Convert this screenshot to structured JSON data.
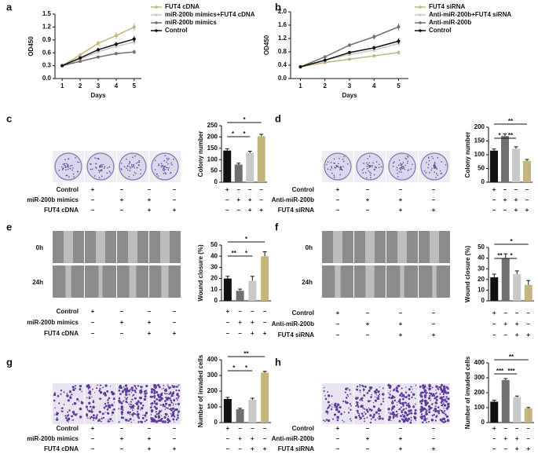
{
  "chart_data": [
    {
      "type": "line",
      "panel": "a",
      "xlabel": "Days",
      "ylabel": "OD450",
      "x": [
        1,
        2,
        3,
        4,
        5
      ],
      "xlim": [
        0.6,
        5.4
      ],
      "xticks": [
        1,
        2,
        3,
        4,
        5
      ],
      "ylim": [
        0,
        1.5
      ],
      "yticks": [
        {
          "value": 0,
          "label": "0.0"
        },
        0.3,
        0.6,
        0.9,
        1.2,
        1.5
      ],
      "series": [
        {
          "name": "FUT4 cDNA",
          "color": "#c2b57d",
          "values": [
            0.3,
            0.55,
            0.82,
            1.0,
            1.2
          ],
          "errors": [
            0.02,
            0.04,
            0.06,
            0.08,
            0.1
          ]
        },
        {
          "name": "miR-200b mimics+FUT4 cDNA",
          "color": "#c9c9c9",
          "values": [
            0.3,
            0.45,
            0.62,
            0.75,
            0.85
          ],
          "errors": [
            0.02,
            0.03,
            0.04,
            0.05,
            0.06
          ]
        },
        {
          "name": "miR-200b mimics",
          "color": "#707070",
          "values": [
            0.3,
            0.4,
            0.5,
            0.58,
            0.62
          ],
          "errors": [
            0.02,
            0.02,
            0.03,
            0.03,
            0.05
          ]
        },
        {
          "name": "Control",
          "color": "#111111",
          "values": [
            0.3,
            0.48,
            0.67,
            0.8,
            0.92
          ],
          "errors": [
            0.02,
            0.03,
            0.04,
            0.05,
            0.07
          ]
        }
      ]
    },
    {
      "type": "line",
      "panel": "b",
      "xlabel": "Days",
      "ylabel": "OD450",
      "x": [
        1,
        2,
        3,
        4,
        5
      ],
      "xlim": [
        0.6,
        5.4
      ],
      "xticks": [
        1,
        2,
        3,
        4,
        5
      ],
      "ylim": [
        0,
        2
      ],
      "yticks": [
        {
          "value": 0,
          "label": "0.0"
        },
        0.4,
        0.8,
        1.2,
        1.6,
        {
          "value": 2,
          "label": "2.0"
        }
      ],
      "series": [
        {
          "name": "FUT4 siRNA",
          "color": "#c2b57d",
          "values": [
            0.35,
            0.48,
            0.58,
            0.68,
            0.78
          ],
          "errors": [
            0.02,
            0.03,
            0.03,
            0.04,
            0.06
          ]
        },
        {
          "name": "Anti-miR-200b+FUT4 siRNA",
          "color": "#c9c9c9",
          "values": [
            0.35,
            0.55,
            0.72,
            0.85,
            1.05
          ],
          "errors": [
            0.02,
            0.04,
            0.05,
            0.06,
            0.08
          ]
        },
        {
          "name": "Anti-miR-200b",
          "color": "#707070",
          "values": [
            0.35,
            0.65,
            1.0,
            1.25,
            1.55
          ],
          "errors": [
            0.02,
            0.05,
            0.06,
            0.08,
            0.1
          ]
        },
        {
          "name": "Control",
          "color": "#111111",
          "values": [
            0.35,
            0.55,
            0.78,
            0.92,
            1.12
          ],
          "errors": [
            0.02,
            0.04,
            0.05,
            0.06,
            0.08
          ]
        }
      ]
    },
    {
      "type": "bar",
      "panel": "c",
      "ylabel": "Colony number",
      "ylim": [
        0,
        250
      ],
      "yticks": [
        0,
        50,
        100,
        150,
        200,
        250
      ],
      "values": [
        140,
        78,
        130,
        203
      ],
      "errors": [
        8,
        6,
        7,
        9
      ],
      "colors": [
        "#111111",
        "#707070",
        "#c9c9c9",
        "#c2b57d"
      ],
      "significance": [
        "*",
        "*",
        "*"
      ]
    },
    {
      "type": "bar",
      "panel": "d",
      "ylabel": "Colony number",
      "ylim": [
        0,
        200
      ],
      "yticks": [
        0,
        50,
        100,
        150,
        200
      ],
      "values": [
        115,
        168,
        122,
        78
      ],
      "errors": [
        6,
        8,
        7,
        5
      ],
      "colors": [
        "#111111",
        "#707070",
        "#c9c9c9",
        "#c2b57d"
      ],
      "significance": [
        "**",
        "*",
        "**"
      ]
    },
    {
      "type": "bar",
      "panel": "e",
      "ylabel": "Wound closure (%)",
      "ylim": [
        0,
        50
      ],
      "yticks": [
        0,
        10,
        20,
        30,
        40,
        50
      ],
      "values": [
        20,
        9,
        18,
        40
      ],
      "errors": [
        2,
        1.5,
        4,
        4
      ],
      "colors": [
        "#111111",
        "#707070",
        "#c9c9c9",
        "#c2b57d"
      ],
      "significance": [
        "*",
        "**",
        "*"
      ]
    },
    {
      "type": "bar",
      "panel": "f",
      "ylabel": "Wound closure (%)",
      "ylim": [
        0,
        50
      ],
      "yticks": [
        0,
        10,
        20,
        30,
        40,
        50
      ],
      "values": [
        22,
        40,
        25,
        15
      ],
      "errors": [
        3,
        4,
        3,
        4
      ],
      "colors": [
        "#111111",
        "#707070",
        "#c9c9c9",
        "#c2b57d"
      ],
      "significance": [
        "*",
        "**",
        "*"
      ]
    },
    {
      "type": "bar",
      "panel": "g",
      "ylabel": "Number of invaded cells",
      "ylim": [
        0,
        400
      ],
      "yticks": [
        0,
        100,
        200,
        300,
        400
      ],
      "values": [
        150,
        85,
        145,
        318
      ],
      "errors": [
        10,
        6,
        10,
        8
      ],
      "colors": [
        "#111111",
        "#707070",
        "#c9c9c9",
        "#c2b57d"
      ],
      "significance": [
        "**",
        "*",
        "*"
      ]
    },
    {
      "type": "bar",
      "panel": "h",
      "ylabel": "Number of invaded cells",
      "ylim": [
        0,
        400
      ],
      "yticks": [
        0,
        100,
        200,
        300,
        400
      ],
      "values": [
        140,
        285,
        170,
        95
      ],
      "errors": [
        10,
        10,
        8,
        6
      ],
      "colors": [
        "#111111",
        "#707070",
        "#c9c9c9",
        "#c2b57d"
      ],
      "significance": [
        "**",
        "***",
        "***"
      ]
    }
  ],
  "conditions": [
    null,
    null,
    [
      {
        "label": "Control",
        "marks": [
          "+",
          "–",
          "–",
          "–"
        ]
      },
      {
        "label": "miR-200b mimics",
        "marks": [
          "–",
          "+",
          "+",
          "–"
        ]
      },
      {
        "label": "FUT4 cDNA",
        "marks": [
          "–",
          "–",
          "+",
          "+"
        ]
      }
    ],
    [
      {
        "label": "Control",
        "marks": [
          "+",
          "–",
          "–",
          "–"
        ]
      },
      {
        "label": "Anti-miR-200b",
        "marks": [
          "–",
          "+",
          "+",
          "–"
        ]
      },
      {
        "label": "FUT4 siRNA",
        "marks": [
          "–",
          "–",
          "+",
          "+"
        ]
      }
    ],
    [
      {
        "label": "Control",
        "marks": [
          "+",
          "–",
          "–",
          "–"
        ]
      },
      {
        "label": "miR-200b mimics",
        "marks": [
          "–",
          "+",
          "+",
          "–"
        ]
      },
      {
        "label": "FUT4 cDNA",
        "marks": [
          "–",
          "–",
          "+",
          "+"
        ]
      }
    ],
    [
      {
        "label": "Control",
        "marks": [
          "+",
          "–",
          "–",
          "–"
        ]
      },
      {
        "label": "Anti-miR-200b",
        "marks": [
          "–",
          "+",
          "+",
          "–"
        ]
      },
      {
        "label": "FUT4 siRNA",
        "marks": [
          "–",
          "–",
          "+",
          "+"
        ]
      }
    ],
    [
      {
        "label": "Control",
        "marks": [
          "+",
          "–",
          "–",
          "–"
        ]
      },
      {
        "label": "miR-200b mimics",
        "marks": [
          "–",
          "+",
          "+",
          "–"
        ]
      },
      {
        "label": "FUT4 cDNA",
        "marks": [
          "–",
          "–",
          "+",
          "+"
        ]
      }
    ],
    [
      {
        "label": "Control",
        "marks": [
          "+",
          "–",
          "–",
          "–"
        ]
      },
      {
        "label": "Anti-miR-200b",
        "marks": [
          "–",
          "+",
          "+",
          "–"
        ]
      },
      {
        "label": "FUT4 siRNA",
        "marks": [
          "–",
          "–",
          "+",
          "+"
        ]
      }
    ]
  ],
  "time_labels": [
    "0h",
    "24h"
  ]
}
